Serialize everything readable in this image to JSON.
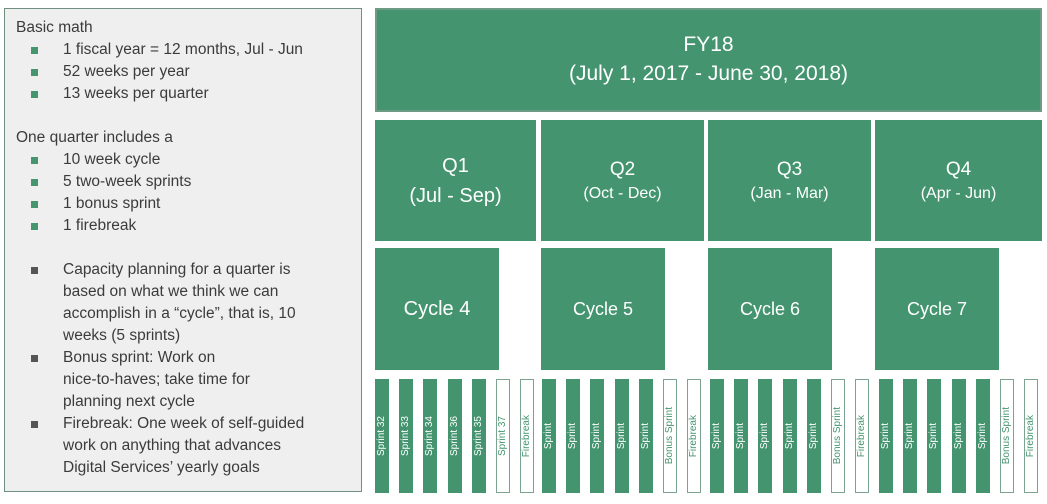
{
  "basics": {
    "heading": "Basic math",
    "items": [
      "1 fiscal year = 12 months, Jul - Jun",
      "52 weeks per year",
      "13 weeks per quarter"
    ]
  },
  "quarter": {
    "heading": "One quarter includes a",
    "items": [
      "10 week cycle",
      "5 two-week sprints",
      "1 bonus sprint",
      "1 firebreak"
    ]
  },
  "notes": {
    "items": [
      [
        "Capacity planning for a quarter is",
        "based on what we think we can",
        "accomplish in a “cycle”, that is, 10",
        "weeks (5 sprints)"
      ],
      [
        "Bonus sprint: Work on",
        "nice-to-haves; take time for",
        "planning next cycle"
      ],
      [
        "Firebreak: One week of self-guided",
        "work on anything that advances",
        "Digital Services’ yearly goals"
      ]
    ]
  },
  "fy": {
    "title": "FY18",
    "range": "(July 1, 2017 - June 30, 2018)"
  },
  "quarters": [
    {
      "name": "Q1",
      "months": "(Jul - Sep)"
    },
    {
      "name": "Q2",
      "months": "(Oct - Dec)"
    },
    {
      "name": "Q3",
      "months": "(Jan - Mar)"
    },
    {
      "name": "Q4",
      "months": "(Apr - Jun)"
    }
  ],
  "cycles": [
    "Cycle 4",
    "Cycle 5",
    "Cycle 6",
    "Cycle 7"
  ],
  "sprint_groups": [
    [
      "Sprint 32",
      "Sprint 33",
      "Sprint 34",
      "Sprint 36",
      "Sprint 35",
      "Sprint 37",
      "Firebreak"
    ],
    [
      "Sprint",
      "Sprint",
      "Sprint",
      "Sprint",
      "Sprint",
      "Bonus Sprint",
      "Firebreak"
    ],
    [
      "Sprint",
      "Sprint",
      "Sprint",
      "Sprint",
      "Sprint",
      "Bonus Sprint",
      "Firebreak"
    ],
    [
      "Sprint",
      "Sprint",
      "Sprint",
      "Sprint",
      "Sprint",
      "Bonus Sprint",
      "Firebreak"
    ]
  ],
  "colors": {
    "green": "#44956f",
    "panel": "#efefef",
    "text": "#3b3b3b"
  }
}
